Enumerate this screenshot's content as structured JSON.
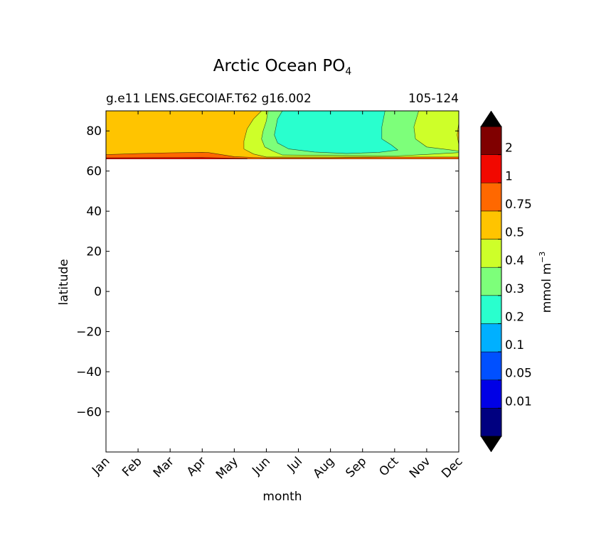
{
  "chart_data": {
    "type": "heatmap",
    "title": "Arctic Ocean PO",
    "title_subscript": "4",
    "subtitle_left": "g.e11 LENS.GECOIAF.T62 g16.002",
    "subtitle_right": "105-124",
    "xlabel": "month",
    "ylabel": "latitude",
    "x_categories": [
      "Jan",
      "Feb",
      "Mar",
      "Apr",
      "May",
      "Jun",
      "Jul",
      "Aug",
      "Sep",
      "Oct",
      "Nov",
      "Dec"
    ],
    "ylim": [
      -80,
      90
    ],
    "y_ticks": [
      80,
      60,
      40,
      20,
      0,
      -20,
      -40,
      -60
    ],
    "y_tick_labels": [
      "80",
      "60",
      "40",
      "20",
      "0",
      "−20",
      "−40",
      "−60"
    ],
    "colorbar": {
      "label": "mmol m",
      "label_superscript": "−3",
      "boundaries": [
        "0.01",
        "0.05",
        "0.1",
        "0.2",
        "0.3",
        "0.4",
        "0.5",
        "0.75",
        "1",
        "2"
      ],
      "colors": [
        "#000080",
        "#0000e6",
        "#0050ff",
        "#00b0ff",
        "#29ffce",
        "#7dff7a",
        "#ceff29",
        "#ffc400",
        "#ff6800",
        "#f10800",
        "#800000"
      ],
      "extend": "both",
      "under_color": "#000000",
      "over_color": "#000000"
    },
    "data_region": {
      "lat_range": [
        66,
        90
      ],
      "levels_by_month": {
        "Jan": ">0.75 south of 68N; 0.5-0.75 north",
        "Feb": ">0.75 south of 68N; 0.5-0.75 north",
        "Mar": ">0.75 south of 68N; 0.5-0.75 north",
        "Apr": ">0.75 south of 69N; 0.5-0.75 north",
        "May": ">0.75 south of 67N; 0.5-0.75 north",
        "Jun": "0.2-0.5 north of 68N",
        "Jul": "0.2-0.3",
        "Aug": "0.2-0.3",
        "Sep": "0.2-0.3",
        "Oct": "0.3-0.4",
        "Nov": "0.4-0.5",
        "Dec": "0.4-0.75; >0.75 south of 68N"
      }
    }
  }
}
